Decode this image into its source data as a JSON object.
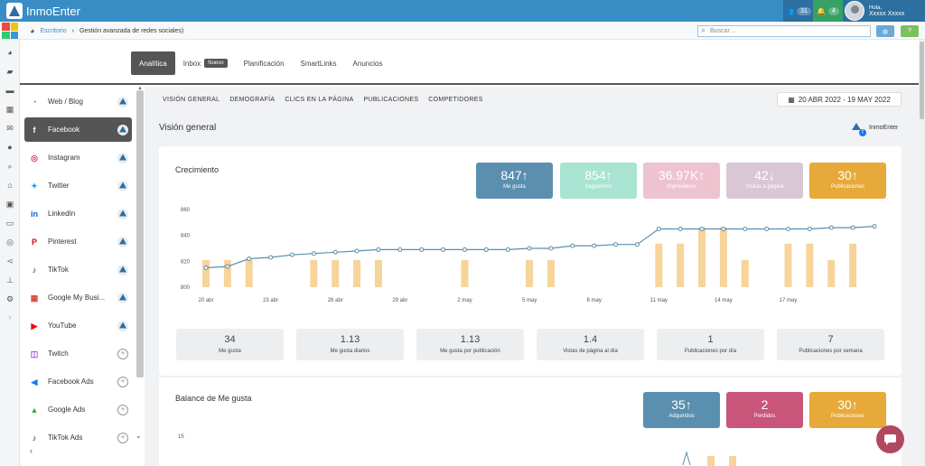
{
  "app": {
    "name": "InmoEnter"
  },
  "top": {
    "users_count": "31",
    "notif_count": "4",
    "greeting": "Hola,",
    "user_name": "Xxxxx Xxxxx"
  },
  "breadcrumb": {
    "home": "Escritorio",
    "sep": "›",
    "current": "Gestión avanzada de redes sociales)"
  },
  "search": {
    "placeholder": "Buscar ..."
  },
  "help_label": "?",
  "tabs": [
    {
      "label": "Analítica"
    },
    {
      "label": "Inbox",
      "badge": "Nuevo"
    },
    {
      "label": "Planificación"
    },
    {
      "label": "SmartLinks"
    },
    {
      "label": "Anuncios"
    }
  ],
  "nav": [
    {
      "label": "Web / Blog",
      "icon": "rss-icon",
      "glyph": "◔",
      "color": "#4a90c4",
      "end": "account"
    },
    {
      "label": "Facebook",
      "icon": "facebook-icon",
      "glyph": "f",
      "color": "#ffffff",
      "end": "account"
    },
    {
      "label": "Instagram",
      "icon": "instagram-icon",
      "glyph": "◎",
      "color": "#e1306c",
      "end": "account"
    },
    {
      "label": "Twitter",
      "icon": "twitter-icon",
      "glyph": "✦",
      "color": "#1da1f2",
      "end": "account"
    },
    {
      "label": "LinkedIn",
      "icon": "linkedin-icon",
      "glyph": "in",
      "color": "#0a66c2",
      "end": "account"
    },
    {
      "label": "Pinterest",
      "icon": "pinterest-icon",
      "glyph": "P",
      "color": "#e60023",
      "end": "account"
    },
    {
      "label": "TikTok",
      "icon": "tiktok-icon",
      "glyph": "♪",
      "color": "#111111",
      "end": "account"
    },
    {
      "label": "Google My Busi...",
      "icon": "google-my-business-icon",
      "glyph": "▦",
      "color": "#db4437",
      "end": "account"
    },
    {
      "label": "YouTube",
      "icon": "youtube-icon",
      "glyph": "▶",
      "color": "#ff0000",
      "end": "account"
    },
    {
      "label": "Twitch",
      "icon": "twitch-icon",
      "glyph": "◫",
      "color": "#9146ff",
      "end": "add"
    },
    {
      "label": "Facebook Ads",
      "icon": "megaphone-icon",
      "glyph": "◀",
      "color": "#1877f2",
      "end": "add"
    },
    {
      "label": "Google Ads",
      "icon": "google-ads-icon",
      "glyph": "▲",
      "color": "#34a853",
      "end": "add"
    },
    {
      "label": "TikTok Ads",
      "icon": "tiktok-ads-icon",
      "glyph": "♪",
      "color": "#111111",
      "end": "add"
    }
  ],
  "section_tabs": [
    "VISIÓN GENERAL",
    "DEMOGRAFÍA",
    "CLICS EN LA PÁGINA",
    "PUBLICACIONES",
    "COMPETIDORES"
  ],
  "date_range": "20 ABR 2022 - 19 MAY 2022",
  "overview_title": "Visión general",
  "account_name": "InmoEnter",
  "growth": {
    "title": "Crecimiento",
    "kpis": [
      {
        "value": "847",
        "label": "Me gusta",
        "color": "#5a8faf",
        "arrow": "↑"
      },
      {
        "value": "854",
        "label": "Seguidores",
        "color": "#a9e3d1",
        "arrow": "↑"
      },
      {
        "value": "36.97K",
        "label": "Impresiones",
        "color": "#eec3d0",
        "arrow": "↑"
      },
      {
        "value": "42",
        "label": "Visitas a página",
        "color": "#d9c7d6",
        "arrow": "↓"
      },
      {
        "value": "30",
        "label": "Publicaciones",
        "color": "#e7a93a",
        "arrow": "↑"
      }
    ]
  },
  "stats": [
    {
      "value": "34",
      "label": "Me gusta"
    },
    {
      "value": "1.13",
      "label": "Me gusta diarios"
    },
    {
      "value": "1.13",
      "label": "Me gusta por publicación"
    },
    {
      "value": "1.4",
      "label": "Vistas de página al día"
    },
    {
      "value": "1",
      "label": "Publicaciones por día"
    },
    {
      "value": "7",
      "label": "Publicaciones por semana"
    }
  ],
  "balance": {
    "title": "Balance de Me gusta",
    "kpis": [
      {
        "value": "35",
        "label": "Adquiridos",
        "color": "#5a8faf",
        "arrow": "↑"
      },
      {
        "value": "2",
        "label": "Perdidos",
        "color": "#c9557a",
        "arrow": ""
      },
      {
        "value": "30",
        "label": "Publicaciones",
        "color": "#e7a93a",
        "arrow": "↑"
      }
    ],
    "y_tick_top": "15"
  },
  "chart_data": {
    "type": "line",
    "x_ticks": [
      "20 abr",
      "23 abr",
      "26 abr",
      "29 abr",
      "2 may",
      "5 may",
      "8 may",
      "11 may",
      "14 may",
      "17 may"
    ],
    "y_ticks": [
      800,
      820,
      840,
      860
    ],
    "ylim": [
      800,
      860
    ],
    "line_values": [
      815,
      816,
      822,
      823,
      825,
      826,
      827,
      828,
      829,
      829,
      829,
      829,
      829,
      829,
      829,
      830,
      830,
      832,
      832,
      833,
      833,
      845,
      845,
      845,
      845,
      845,
      845,
      845,
      845,
      846,
      846,
      847
    ],
    "bar_values": [
      1,
      1,
      1,
      0,
      0,
      1,
      1,
      1,
      1,
      0,
      0,
      0,
      1,
      0,
      0,
      1,
      1,
      0,
      0,
      0,
      0,
      2,
      2,
      3,
      3,
      1,
      0,
      2,
      2,
      1,
      2,
      0
    ],
    "colors": {
      "line": "#5a8faf",
      "bar": "#f6d49a"
    }
  }
}
